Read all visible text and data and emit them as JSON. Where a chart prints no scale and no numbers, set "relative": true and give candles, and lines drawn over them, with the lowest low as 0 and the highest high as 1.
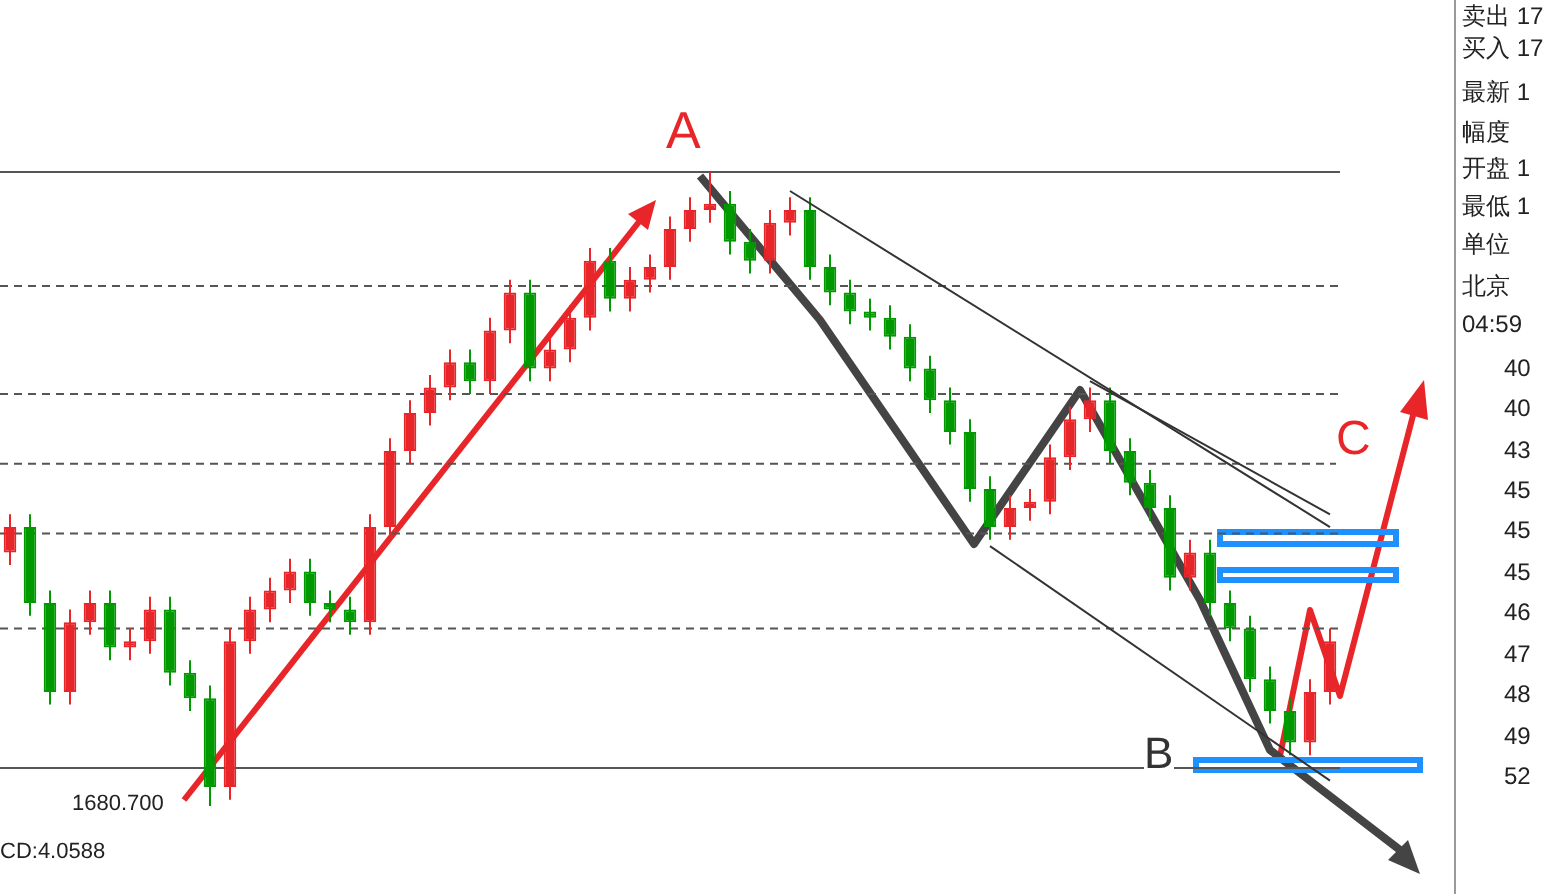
{
  "chart_data": {
    "type": "candlestick",
    "relative": true,
    "legend": false,
    "series": [
      {
        "type": "line",
        "color": "#333333",
        "values": [
          null,
          null,
          null,
          null,
          null,
          null,
          null,
          null,
          null,
          null,
          null,
          null,
          null,
          null,
          null,
          null,
          null,
          null,
          null,
          null,
          null,
          null,
          null,
          null,
          null,
          null,
          null,
          null,
          null,
          null,
          null,
          null,
          null,
          null,
          null,
          null,
          null,
          null,
          null,
          0.97,
          null,
          null,
          null,
          null,
          null,
          null,
          null,
          null,
          null,
          null,
          null,
          null,
          null,
          null,
          null,
          null,
          null,
          null,
          null,
          null,
          null,
          null,
          null,
          null,
          null,
          null,
          0.44
        ]
      },
      {
        "type": "line",
        "color": "#333333",
        "values": [
          null,
          null,
          null,
          null,
          null,
          null,
          null,
          null,
          null,
          null,
          null,
          null,
          null,
          null,
          null,
          null,
          null,
          null,
          null,
          null,
          null,
          null,
          null,
          null,
          null,
          null,
          null,
          null,
          null,
          null,
          null,
          null,
          null,
          null,
          null,
          null,
          null,
          null,
          null,
          null,
          null,
          null,
          null,
          null,
          null,
          null,
          null,
          null,
          null,
          0.41,
          null,
          null,
          null,
          null,
          null,
          null,
          null,
          null,
          null,
          null,
          null,
          null,
          null,
          null,
          null,
          null,
          0.04
        ]
      },
      {
        "type": "line",
        "color": "#333333",
        "values": [
          null,
          null,
          null,
          null,
          null,
          null,
          null,
          null,
          null,
          null,
          null,
          null,
          null,
          null,
          null,
          null,
          null,
          null,
          null,
          null,
          null,
          null,
          null,
          null,
          null,
          null,
          null,
          null,
          null,
          null,
          null,
          null,
          null,
          null,
          null,
          null,
          null,
          null,
          null,
          null,
          null,
          null,
          null,
          null,
          null,
          null,
          null,
          null,
          null,
          null,
          null,
          null,
          null,
          null,
          0.67,
          null,
          null,
          null,
          null,
          null,
          null,
          null,
          null,
          null,
          null,
          null,
          0.46
        ]
      }
    ],
    "categories": [
      null,
      null,
      null,
      null,
      null,
      null,
      null,
      null,
      null,
      null,
      null,
      null,
      null,
      null,
      null,
      null,
      null,
      null,
      null,
      null,
      null,
      null,
      null,
      null,
      null,
      null,
      null,
      null,
      null,
      null,
      null,
      null,
      null,
      null,
      null,
      null,
      null,
      null,
      null,
      null,
      null,
      null,
      null,
      null,
      null,
      null,
      null,
      null,
      null,
      null,
      null,
      null,
      null,
      null,
      null,
      null,
      null,
      null,
      null,
      null,
      null,
      null,
      null,
      null,
      null,
      null,
      null
    ],
    "ohlc": [
      [
        0.4,
        0.46,
        0.38,
        0.44
      ],
      [
        0.44,
        0.46,
        0.3,
        0.32
      ],
      [
        0.32,
        0.34,
        0.16,
        0.18
      ],
      [
        0.18,
        0.31,
        0.16,
        0.29
      ],
      [
        0.29,
        0.34,
        0.27,
        0.32
      ],
      [
        0.32,
        0.34,
        0.23,
        0.25
      ],
      [
        0.25,
        0.28,
        0.23,
        0.26
      ],
      [
        0.26,
        0.33,
        0.24,
        0.31
      ],
      [
        0.31,
        0.33,
        0.19,
        0.21
      ],
      [
        0.21,
        0.23,
        0.15,
        0.17
      ],
      [
        0.17,
        0.19,
        0,
        0.03
      ],
      [
        0.03,
        0.28,
        0.01,
        0.26
      ],
      [
        0.26,
        0.33,
        0.24,
        0.31
      ],
      [
        0.31,
        0.36,
        0.29,
        0.34
      ],
      [
        0.34,
        0.39,
        0.32,
        0.37
      ],
      [
        0.37,
        0.39,
        0.3,
        0.32
      ],
      [
        0.32,
        0.34,
        0.29,
        0.31
      ],
      [
        0.31,
        0.33,
        0.27,
        0.29
      ],
      [
        0.29,
        0.46,
        0.27,
        0.44
      ],
      [
        0.44,
        0.58,
        0.42,
        0.56
      ],
      [
        0.56,
        0.64,
        0.54,
        0.62
      ],
      [
        0.62,
        0.68,
        0.6,
        0.66
      ],
      [
        0.66,
        0.72,
        0.64,
        0.7
      ],
      [
        0.7,
        0.72,
        0.65,
        0.67
      ],
      [
        0.67,
        0.77,
        0.65,
        0.75
      ],
      [
        0.75,
        0.83,
        0.73,
        0.81
      ],
      [
        0.81,
        0.83,
        0.67,
        0.69
      ],
      [
        0.69,
        0.74,
        0.67,
        0.72
      ],
      [
        0.72,
        0.79,
        0.7,
        0.77
      ],
      [
        0.77,
        0.88,
        0.75,
        0.86
      ],
      [
        0.86,
        0.88,
        0.78,
        0.8
      ],
      [
        0.8,
        0.85,
        0.78,
        0.83
      ],
      [
        0.83,
        0.87,
        0.81,
        0.85
      ],
      [
        0.85,
        0.93,
        0.83,
        0.91
      ],
      [
        0.91,
        0.96,
        0.89,
        0.94
      ],
      [
        0.94,
        1,
        0.92,
        0.95
      ],
      [
        0.95,
        0.97,
        0.87,
        0.89
      ],
      [
        0.89,
        0.91,
        0.84,
        0.86
      ],
      [
        0.86,
        0.94,
        0.84,
        0.92
      ],
      [
        0.92,
        0.96,
        0.9,
        0.94
      ],
      [
        0.94,
        0.96,
        0.83,
        0.85
      ],
      [
        0.85,
        0.87,
        0.79,
        0.81
      ],
      [
        0.81,
        0.83,
        0.76,
        0.78
      ],
      [
        0.78,
        0.8,
        0.75,
        0.77
      ],
      [
        0.77,
        0.79,
        0.72,
        0.74
      ],
      [
        0.74,
        0.76,
        0.67,
        0.69
      ],
      [
        0.69,
        0.71,
        0.62,
        0.64
      ],
      [
        0.64,
        0.66,
        0.57,
        0.59
      ],
      [
        0.59,
        0.61,
        0.48,
        0.5
      ],
      [
        0.5,
        0.52,
        0.42,
        0.44
      ],
      [
        0.44,
        0.49,
        0.42,
        0.47
      ],
      [
        0.47,
        0.5,
        0.45,
        0.48
      ],
      [
        0.48,
        0.57,
        0.46,
        0.55
      ],
      [
        0.55,
        0.63,
        0.53,
        0.61
      ],
      [
        0.61,
        0.66,
        0.59,
        0.64
      ],
      [
        0.64,
        0.66,
        0.54,
        0.56
      ],
      [
        0.56,
        0.58,
        0.49,
        0.51
      ],
      [
        0.51,
        0.53,
        0.45,
        0.47
      ],
      [
        0.47,
        0.49,
        0.34,
        0.36
      ],
      [
        0.36,
        0.42,
        0.34,
        0.4
      ],
      [
        0.4,
        0.42,
        0.3,
        0.32
      ],
      [
        0.32,
        0.34,
        0.26,
        0.28
      ],
      [
        0.28,
        0.3,
        0.18,
        0.2
      ],
      [
        0.2,
        0.22,
        0.13,
        0.15
      ],
      [
        0.15,
        0.17,
        0.08,
        0.1
      ],
      [
        0.1,
        0.2,
        0.08,
        0.18
      ],
      [
        0.18,
        0.28,
        0.16,
        0.26
      ]
    ],
    "colors": [
      "#e8262a",
      "#009900",
      "#009900",
      "#e8262a",
      "#e8262a",
      "#009900",
      "#e8262a",
      "#e8262a",
      "#009900",
      "#009900",
      "#009900",
      "#e8262a",
      "#e8262a",
      "#e8262a",
      "#e8262a",
      "#009900",
      "#009900",
      "#009900",
      "#e8262a",
      "#e8262a",
      "#e8262a",
      "#e8262a",
      "#e8262a",
      "#009900",
      "#e8262a",
      "#e8262a",
      "#009900",
      "#e8262a",
      "#e8262a",
      "#e8262a",
      "#009900",
      "#e8262a",
      "#e8262a",
      "#e8262a",
      "#e8262a",
      "#e8262a",
      "#009900",
      "#009900",
      "#e8262a",
      "#e8262a",
      "#009900",
      "#009900",
      "#009900",
      "#009900",
      "#009900",
      "#009900",
      "#009900",
      "#009900",
      "#009900",
      "#009900",
      "#e8262a",
      "#e8262a",
      "#e8262a",
      "#e8262a",
      "#e8262a",
      "#009900",
      "#009900",
      "#009900",
      "#009900",
      "#e8262a",
      "#009900",
      "#009900",
      "#009900",
      "#009900",
      "#009900",
      "#e8262a",
      "#e8262a"
    ],
    "ref_lines": [
      {
        "axis": "y",
        "value": 1,
        "color": "#555555",
        "line_style": "solid"
      },
      {
        "axis": "y",
        "value": 0.06,
        "color": "#555555",
        "line_style": "solid"
      },
      {
        "axis": "y",
        "value": 0.82,
        "color": "#555555",
        "line_style": "dashed"
      },
      {
        "axis": "y",
        "value": 0.65,
        "color": "#555555",
        "line_style": "dashed"
      },
      {
        "axis": "y",
        "value": 0.54,
        "color": "#555555",
        "line_style": "dashed"
      },
      {
        "axis": "y",
        "value": 0.43,
        "color": "#555555",
        "line_style": "dashed"
      },
      {
        "axis": "y",
        "value": 0.28,
        "color": "#555555",
        "line_style": "dashed"
      }
    ],
    "annotations": [
      "A",
      "B",
      "C",
      "1680.700",
      "CD:4.0588",
      "卖出 17",
      "买入 17",
      "最新 1",
      "幅度",
      "开盘 1",
      "最低 1",
      "单位",
      "北京",
      "04:59",
      "40",
      "40",
      "43",
      "45",
      "45",
      "45",
      "46",
      "47",
      "48",
      "49",
      "52"
    ]
  }
}
